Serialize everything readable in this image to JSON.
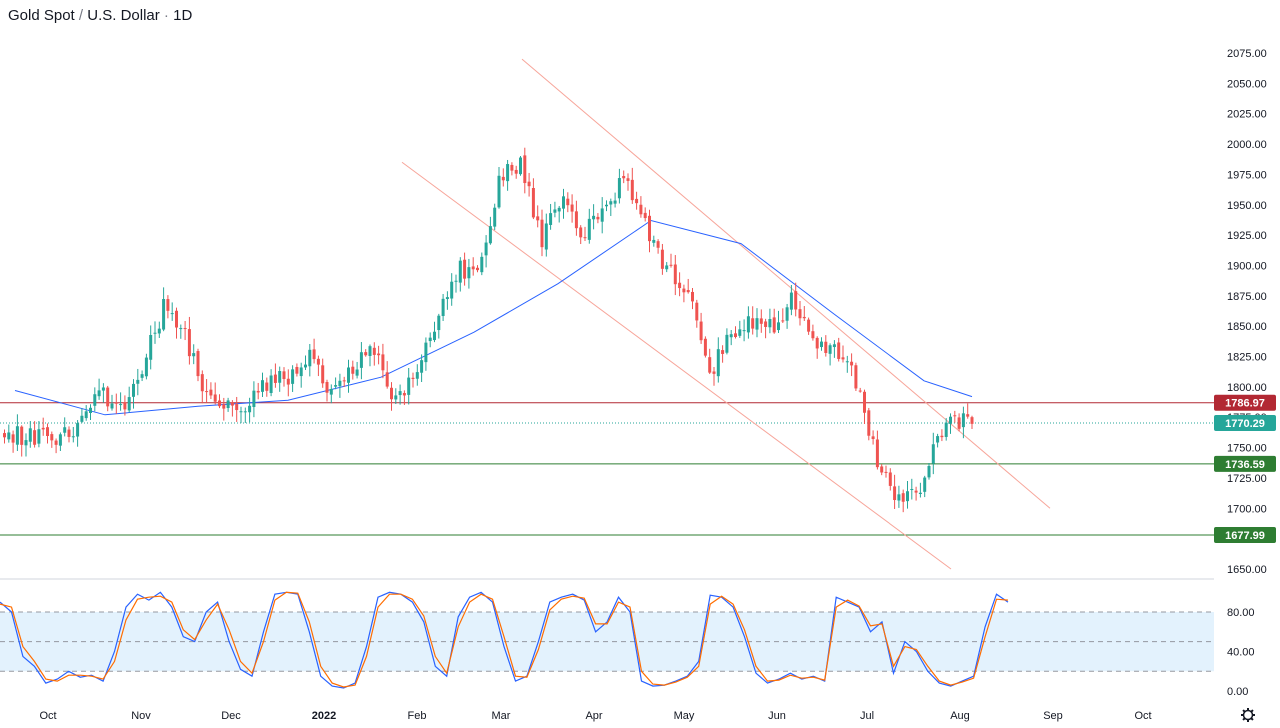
{
  "title": {
    "symbol": "Gold Spot",
    "sep": " / ",
    "quote": "U.S. Dollar",
    "dot": " · ",
    "interval": "1D"
  },
  "settings_icon": "gear-icon",
  "colors": {
    "up": "#26a69a",
    "down": "#ef5350",
    "ma": "#2962ff",
    "channel": "#f7a59a",
    "resistance": "#b22833",
    "support": "#2e7d32",
    "current": "#26a69a",
    "stoch_k": "#2962ff",
    "stoch_d": "#ff6d00",
    "stoch_band": "#e3f2fd"
  },
  "chart_data": [
    {
      "type": "candlestick",
      "interval": "1D",
      "ylim": [
        1630,
        2090
      ],
      "y_ticks": [
        1650,
        1675,
        1700,
        1725,
        1750,
        1775,
        1800,
        1825,
        1850,
        1875,
        1900,
        1925,
        1950,
        1975,
        2000,
        2025,
        2050,
        2075
      ],
      "x_ticks": [
        "Oct",
        "Nov",
        "Dec",
        "2022",
        "Feb",
        "Mar",
        "Apr",
        "May",
        "Jun",
        "Jul",
        "Aug",
        "Sep",
        "Oct"
      ],
      "approximate_close_path": [
        [
          "2021-09-20",
          1760
        ],
        [
          "2021-09-27",
          1758
        ],
        [
          "2021-10-04",
          1755
        ],
        [
          "2021-10-11",
          1768
        ],
        [
          "2021-10-18",
          1795
        ],
        [
          "2021-10-25",
          1783
        ],
        [
          "2021-11-01",
          1818
        ],
        [
          "2021-11-08",
          1865
        ],
        [
          "2021-11-15",
          1845
        ],
        [
          "2021-11-22",
          1790
        ],
        [
          "2021-11-29",
          1783
        ],
        [
          "2021-12-06",
          1782
        ],
        [
          "2021-12-13",
          1805
        ],
        [
          "2021-12-20",
          1810
        ],
        [
          "2021-12-27",
          1830
        ],
        [
          "2022-01-03",
          1795
        ],
        [
          "2022-01-10",
          1815
        ],
        [
          "2022-01-17",
          1835
        ],
        [
          "2022-01-24",
          1790
        ],
        [
          "2022-01-31",
          1808
        ],
        [
          "2022-02-07",
          1858
        ],
        [
          "2022-02-14",
          1898
        ],
        [
          "2022-02-21",
          1890
        ],
        [
          "2022-02-28",
          1970
        ],
        [
          "2022-03-07",
          1985
        ],
        [
          "2022-03-14",
          1920
        ],
        [
          "2022-03-21",
          1955
        ],
        [
          "2022-03-28",
          1925
        ],
        [
          "2022-04-04",
          1945
        ],
        [
          "2022-04-11",
          1975
        ],
        [
          "2022-04-18",
          1930
        ],
        [
          "2022-04-25",
          1895
        ],
        [
          "2022-05-02",
          1880
        ],
        [
          "2022-05-09",
          1810
        ],
        [
          "2022-05-16",
          1845
        ],
        [
          "2022-05-23",
          1855
        ],
        [
          "2022-05-30",
          1850
        ],
        [
          "2022-06-06",
          1875
        ],
        [
          "2022-06-13",
          1840
        ],
        [
          "2022-06-20",
          1828
        ],
        [
          "2022-06-27",
          1805
        ],
        [
          "2022-07-04",
          1740
        ],
        [
          "2022-07-11",
          1705
        ],
        [
          "2022-07-18",
          1715
        ],
        [
          "2022-07-25",
          1765
        ],
        [
          "2022-08-01",
          1772
        ],
        [
          "2022-08-05",
          1770.29
        ]
      ],
      "channel": {
        "upper": [
          [
            "2022-03-08",
            2070
          ],
          [
            "2022-08-31",
            1700
          ]
        ],
        "lower": [
          [
            "2022-01-27",
            1985
          ],
          [
            "2022-07-29",
            1650
          ]
        ]
      },
      "moving_average": {
        "approximate_path": [
          [
            "2021-09-20",
            1797
          ],
          [
            "2021-10-20",
            1777
          ],
          [
            "2021-11-20",
            1784
          ],
          [
            "2021-12-20",
            1789
          ],
          [
            "2022-01-20",
            1808
          ],
          [
            "2022-02-20",
            1845
          ],
          [
            "2022-03-20",
            1885
          ],
          [
            "2022-04-20",
            1937
          ],
          [
            "2022-05-20",
            1918
          ],
          [
            "2022-06-20",
            1860
          ],
          [
            "2022-07-20",
            1805
          ],
          [
            "2022-08-05",
            1792
          ]
        ]
      },
      "price_labels": [
        {
          "value": 1786.97,
          "label": "1786.97",
          "kind": "resistance"
        },
        {
          "value": 1770.29,
          "label": "1770.29",
          "kind": "current"
        },
        {
          "value": 1736.59,
          "label": "1736.59",
          "kind": "support"
        },
        {
          "value": 1677.99,
          "label": "1677.99",
          "kind": "support"
        }
      ]
    },
    {
      "type": "line",
      "name": "stochastic",
      "ylim": [
        -5,
        110
      ],
      "y_ticks": [
        0,
        40,
        80
      ],
      "y_tick_labels": [
        "0.00",
        "40.00",
        "80.00"
      ],
      "band": [
        20,
        80
      ],
      "dashed_levels": [
        20,
        50,
        80
      ],
      "series": [
        {
          "values": [
            90,
            80,
            35,
            25,
            8,
            12,
            20,
            14,
            16,
            10,
            40,
            85,
            98,
            92,
            100,
            85,
            55,
            50,
            80,
            90,
            50,
            22,
            15,
            60,
            98,
            100,
            98,
            60,
            15,
            5,
            3,
            8,
            45,
            95,
            100,
            98,
            90,
            70,
            25,
            15,
            75,
            95,
            100,
            90,
            45,
            10,
            15,
            50,
            90,
            95,
            98,
            92,
            60,
            70,
            95,
            80,
            10,
            5,
            6,
            10,
            15,
            30,
            97,
            95,
            85,
            55,
            18,
            8,
            12,
            18,
            12,
            15,
            10,
            95,
            90,
            85,
            60,
            70,
            18,
            50,
            40,
            20,
            8,
            5,
            10,
            15,
            65,
            98,
            90
          ]
        },
        {
          "values": [
            88,
            85,
            45,
            30,
            12,
            10,
            16,
            16,
            15,
            12,
            30,
            72,
            93,
            95,
            96,
            90,
            62,
            52,
            72,
            88,
            62,
            30,
            18,
            50,
            92,
            100,
            99,
            70,
            25,
            8,
            4,
            6,
            35,
            85,
            98,
            98,
            93,
            76,
            35,
            18,
            65,
            90,
            98,
            93,
            55,
            15,
            14,
            42,
            82,
            93,
            96,
            94,
            68,
            68,
            90,
            85,
            20,
            7,
            6,
            9,
            14,
            25,
            88,
            96,
            88,
            62,
            25,
            10,
            11,
            16,
            13,
            14,
            11,
            85,
            92,
            86,
            66,
            68,
            25,
            45,
            42,
            25,
            10,
            6,
            9,
            13,
            55,
            93,
            92
          ]
        }
      ]
    }
  ]
}
